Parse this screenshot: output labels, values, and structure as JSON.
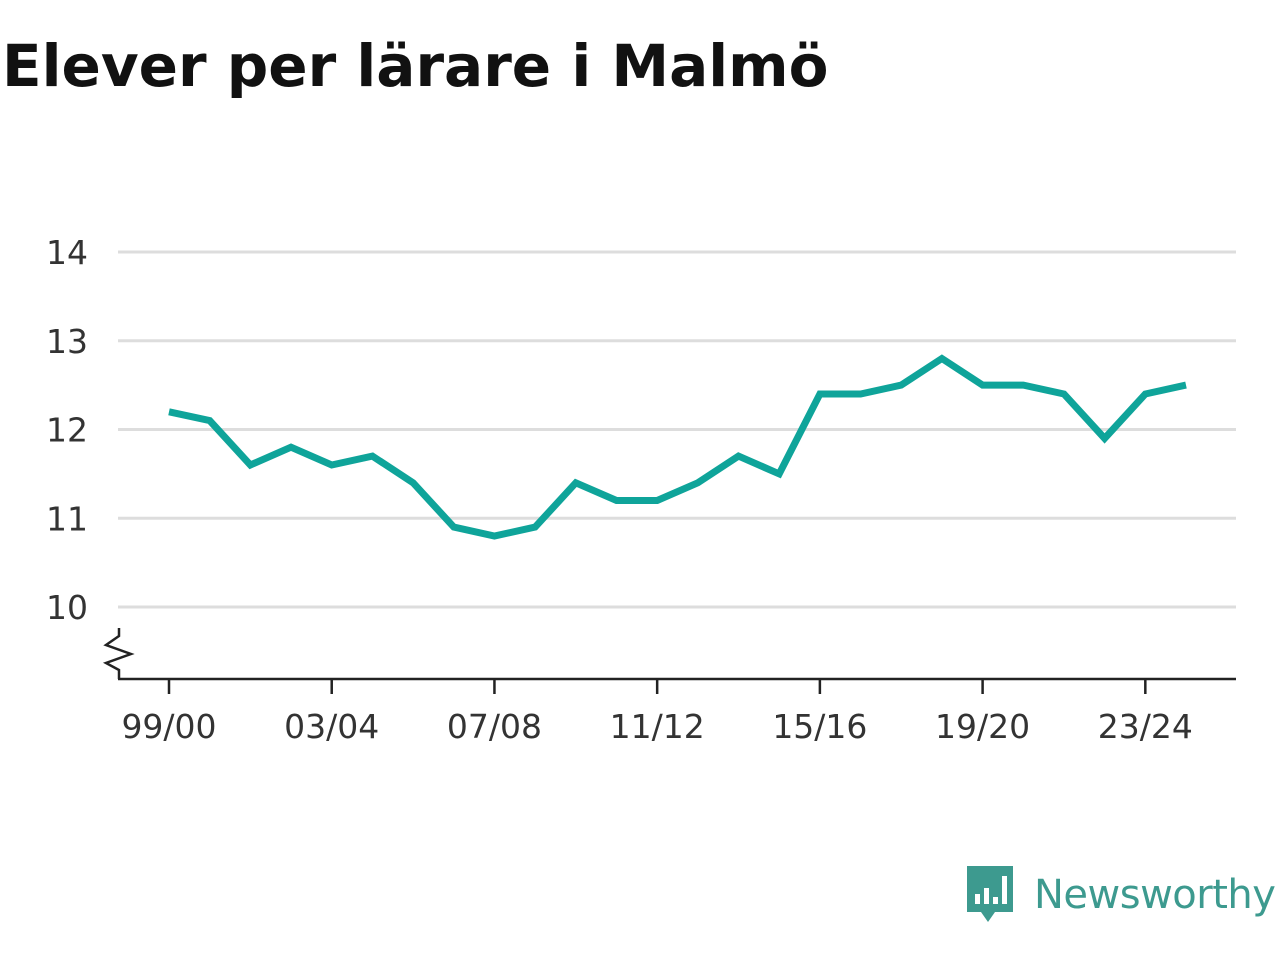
{
  "title": "Elever per lärare i Malmö",
  "brand": {
    "name": "Newsworthy",
    "logo_icon": "bar-chart-speech-bubble-icon",
    "color": "#3d9a8f"
  },
  "chart_data": {
    "type": "line",
    "title": "Elever per lärare i Malmö",
    "xlabel": "",
    "ylabel": "",
    "x": [
      "99/00",
      "00/01",
      "01/02",
      "02/03",
      "03/04",
      "04/05",
      "05/06",
      "06/07",
      "07/08",
      "08/09",
      "09/10",
      "10/11",
      "11/12",
      "12/13",
      "13/14",
      "14/15",
      "15/16",
      "16/17",
      "17/18",
      "18/19",
      "19/20",
      "20/21",
      "21/22",
      "22/23",
      "23/24",
      "24/25"
    ],
    "x_tick_labels": [
      "99/00",
      "03/04",
      "07/08",
      "11/12",
      "15/16",
      "19/20",
      "23/24"
    ],
    "series": [
      {
        "values": [
          12.2,
          12.1,
          11.6,
          11.8,
          11.6,
          11.7,
          11.4,
          10.9,
          10.8,
          10.9,
          11.4,
          11.2,
          11.2,
          11.4,
          11.7,
          11.5,
          12.4,
          12.4,
          12.5,
          12.8,
          12.5,
          12.5,
          12.4,
          11.9,
          12.4,
          12.5
        ],
        "color": "#0fa49a"
      }
    ],
    "y_ticks": [
      "10",
      "11",
      "12",
      "13",
      "14"
    ],
    "ylim": [
      10,
      14
    ],
    "y_axis_break": true,
    "grid": true,
    "legend": "none"
  }
}
